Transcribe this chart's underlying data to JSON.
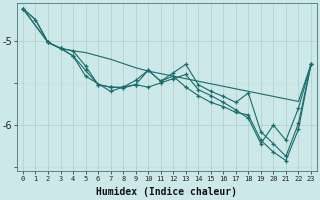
{
  "title": "",
  "xlabel": "Humidex (Indice chaleur)",
  "bg_color": "#cce8e8",
  "line_color": "#1a6b6b",
  "grid_color_minor": "#b8d8d8",
  "grid_color_major": "#c0dcdc",
  "xlim": [
    -0.5,
    23.5
  ],
  "ylim": [
    -6.55,
    -4.55
  ],
  "yticks": [
    -6,
    -5
  ],
  "xticks": [
    0,
    1,
    2,
    3,
    4,
    5,
    6,
    7,
    8,
    9,
    10,
    11,
    12,
    13,
    14,
    15,
    16,
    17,
    18,
    19,
    20,
    21,
    22,
    23
  ],
  "lines": [
    {
      "x": [
        0,
        1,
        2,
        3,
        4,
        5,
        6,
        7,
        8,
        9,
        10,
        11,
        12,
        13,
        14,
        15,
        16,
        17,
        18,
        19,
        20,
        21,
        22,
        23
      ],
      "y": [
        -4.62,
        -4.75,
        -5.02,
        -5.09,
        -5.12,
        -5.14,
        -5.18,
        -5.22,
        -5.27,
        -5.32,
        -5.36,
        -5.39,
        -5.42,
        -5.45,
        -5.48,
        -5.51,
        -5.54,
        -5.57,
        -5.6,
        -5.63,
        -5.66,
        -5.69,
        -5.72,
        -5.28
      ],
      "has_markers": false
    },
    {
      "x": [
        0,
        1,
        2,
        3,
        4,
        5,
        6,
        7,
        8,
        9,
        10,
        11,
        12,
        13,
        14,
        15,
        16,
        17,
        18,
        19,
        20,
        21,
        22,
        23
      ],
      "y": [
        -4.62,
        -4.75,
        -5.02,
        -5.09,
        -5.12,
        -5.3,
        -5.52,
        -5.55,
        -5.55,
        -5.47,
        -5.35,
        -5.48,
        -5.38,
        -5.28,
        -5.52,
        -5.6,
        -5.66,
        -5.73,
        -5.62,
        -6.08,
        -6.22,
        -6.37,
        -5.98,
        -5.28
      ],
      "has_markers": true
    },
    {
      "x": [
        0,
        2,
        3,
        4,
        5,
        6,
        7,
        8,
        9,
        10,
        11,
        12,
        13,
        14,
        15,
        16,
        17,
        18,
        19,
        20,
        21,
        22,
        23
      ],
      "y": [
        -4.62,
        -5.02,
        -5.09,
        -5.18,
        -5.35,
        -5.52,
        -5.55,
        -5.56,
        -5.52,
        -5.35,
        -5.48,
        -5.42,
        -5.55,
        -5.65,
        -5.73,
        -5.78,
        -5.85,
        -5.88,
        -6.18,
        -6.32,
        -6.42,
        -6.05,
        -5.28
      ],
      "has_markers": true
    },
    {
      "x": [
        0,
        2,
        3,
        4,
        5,
        7,
        8,
        9,
        10,
        11,
        12,
        13,
        14,
        15,
        16,
        17,
        18,
        19,
        20,
        21,
        22,
        23
      ],
      "y": [
        -4.62,
        -5.02,
        -5.09,
        -5.18,
        -5.42,
        -5.6,
        -5.55,
        -5.52,
        -5.55,
        -5.5,
        -5.45,
        -5.4,
        -5.58,
        -5.65,
        -5.73,
        -5.82,
        -5.92,
        -6.22,
        -6.0,
        -6.18,
        -5.8,
        -5.28
      ],
      "has_markers": true
    }
  ]
}
